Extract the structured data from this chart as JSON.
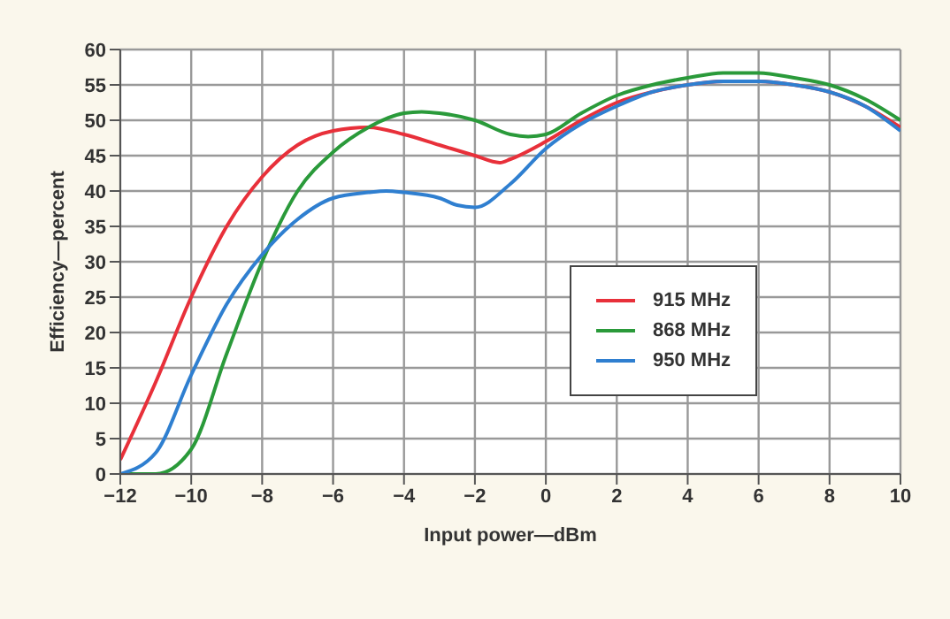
{
  "chart_data": {
    "type": "line",
    "xlabel": "Input power—dBm",
    "ylabel": "Efficiency—percent",
    "xlim": [
      -12,
      10
    ],
    "xticks": [
      -12,
      -10,
      -8,
      -6,
      -4,
      -2,
      0,
      2,
      4,
      6,
      8,
      10
    ],
    "ylim": [
      0,
      60
    ],
    "yticks": [
      0,
      5,
      10,
      15,
      20,
      25,
      30,
      35,
      40,
      45,
      50,
      55,
      60
    ],
    "grid": true,
    "legend": "right",
    "line_style": "solid",
    "marker": "none",
    "series": [
      {
        "name": "915 MHz",
        "color": "#e8303a",
        "x": [
          -12,
          -11,
          -10,
          -9,
          -8,
          -7,
          -6,
          -5,
          -4,
          -3,
          -2,
          -1.3,
          -1,
          0,
          1,
          2,
          3,
          4,
          5,
          6,
          7,
          8,
          9,
          10
        ],
        "values": [
          2,
          13,
          25,
          35,
          42,
          46.5,
          48.5,
          49,
          48,
          46.5,
          45,
          44,
          44.5,
          47,
          50,
          52.5,
          54,
          55,
          55.5,
          55.5,
          55,
          54,
          52,
          49
        ]
      },
      {
        "name": "868 MHz",
        "color": "#2a9a3a",
        "x": [
          -12,
          -11,
          -10,
          -9,
          -8,
          -7,
          -6,
          -5,
          -4,
          -3.5,
          -3,
          -2,
          -1,
          -0.5,
          0,
          1,
          2,
          3,
          4,
          5,
          6,
          7,
          8,
          9,
          10
        ],
        "values": [
          0,
          0,
          3.5,
          17,
          30,
          40,
          45.5,
          49,
          51,
          51.2,
          51,
          50,
          48,
          47.7,
          48,
          51,
          53.5,
          55,
          56,
          56.7,
          56.7,
          56,
          55,
          53,
          50
        ]
      },
      {
        "name": "950 MHz",
        "color": "#2f7fd0",
        "x": [
          -12,
          -11,
          -10,
          -9,
          -8,
          -7,
          -6,
          -5,
          -4.5,
          -4,
          -3,
          -2.5,
          -2,
          -1,
          0,
          1,
          2,
          3,
          4,
          5,
          6,
          7,
          8,
          9,
          10
        ],
        "values": [
          0,
          3,
          14,
          24,
          31,
          36,
          39,
          39.8,
          40,
          39.8,
          39,
          38,
          37.7,
          41,
          46,
          49.5,
          52,
          54,
          55,
          55.5,
          55.5,
          55,
          54,
          52,
          48.5
        ]
      }
    ]
  }
}
